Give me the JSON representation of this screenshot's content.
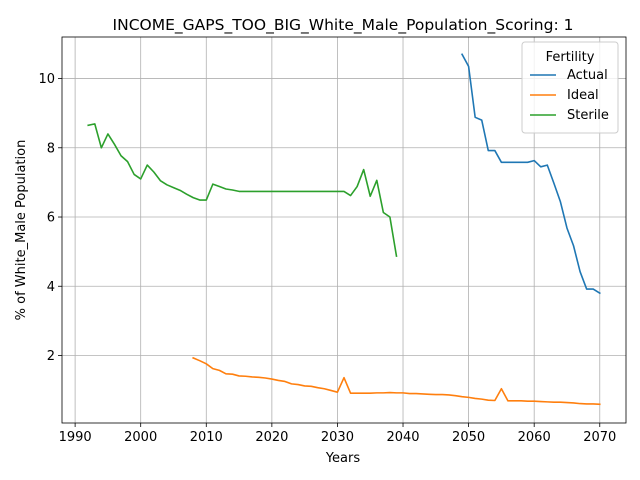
{
  "chart_data": {
    "type": "line",
    "title": "INCOME_GAPS_TOO_BIG_White_Male_Population_Scoring: 1",
    "xlabel": "Years",
    "ylabel": "% of White_Male Population",
    "xlim": [
      1988,
      2074
    ],
    "ylim": [
      0.05,
      11.2
    ],
    "x_ticks": [
      1990,
      2000,
      2010,
      2020,
      2030,
      2040,
      2050,
      2060,
      2070
    ],
    "y_ticks": [
      2,
      4,
      6,
      8,
      10
    ],
    "grid": true,
    "legend": {
      "title": "Fertility",
      "position": "top-right"
    },
    "series": [
      {
        "name": "Actual",
        "color": "#1f77b4",
        "points": [
          [
            2049,
            10.7
          ],
          [
            2050,
            10.35
          ],
          [
            2051,
            8.88
          ],
          [
            2052,
            8.8
          ],
          [
            2053,
            7.92
          ],
          [
            2054,
            7.92
          ],
          [
            2055,
            7.58
          ],
          [
            2056,
            7.58
          ],
          [
            2057,
            7.58
          ],
          [
            2058,
            7.58
          ],
          [
            2059,
            7.58
          ],
          [
            2060,
            7.63
          ],
          [
            2061,
            7.45
          ],
          [
            2062,
            7.5
          ],
          [
            2063,
            6.98
          ],
          [
            2064,
            6.44
          ],
          [
            2065,
            5.68
          ],
          [
            2066,
            5.17
          ],
          [
            2067,
            4.42
          ],
          [
            2068,
            3.92
          ],
          [
            2069,
            3.92
          ],
          [
            2070,
            3.8
          ]
        ]
      },
      {
        "name": "Ideal",
        "color": "#ff7f0e",
        "points": [
          [
            2008,
            1.93
          ],
          [
            2009,
            1.85
          ],
          [
            2010,
            1.76
          ],
          [
            2011,
            1.62
          ],
          [
            2012,
            1.57
          ],
          [
            2013,
            1.47
          ],
          [
            2014,
            1.46
          ],
          [
            2015,
            1.41
          ],
          [
            2016,
            1.4
          ],
          [
            2017,
            1.38
          ],
          [
            2018,
            1.37
          ],
          [
            2019,
            1.35
          ],
          [
            2020,
            1.32
          ],
          [
            2021,
            1.28
          ],
          [
            2022,
            1.25
          ],
          [
            2023,
            1.18
          ],
          [
            2024,
            1.16
          ],
          [
            2025,
            1.12
          ],
          [
            2026,
            1.11
          ],
          [
            2027,
            1.07
          ],
          [
            2028,
            1.04
          ],
          [
            2029,
            0.99
          ],
          [
            2030,
            0.94
          ],
          [
            2031,
            1.36
          ],
          [
            2032,
            0.91
          ],
          [
            2033,
            0.91
          ],
          [
            2034,
            0.91
          ],
          [
            2035,
            0.91
          ],
          [
            2036,
            0.92
          ],
          [
            2037,
            0.92
          ],
          [
            2038,
            0.93
          ],
          [
            2039,
            0.92
          ],
          [
            2040,
            0.92
          ],
          [
            2041,
            0.9
          ],
          [
            2042,
            0.9
          ],
          [
            2043,
            0.89
          ],
          [
            2044,
            0.88
          ],
          [
            2045,
            0.87
          ],
          [
            2046,
            0.87
          ],
          [
            2047,
            0.86
          ],
          [
            2048,
            0.84
          ],
          [
            2049,
            0.81
          ],
          [
            2050,
            0.79
          ],
          [
            2051,
            0.76
          ],
          [
            2052,
            0.74
          ],
          [
            2053,
            0.71
          ],
          [
            2054,
            0.7
          ],
          [
            2055,
            1.04
          ],
          [
            2056,
            0.69
          ],
          [
            2057,
            0.69
          ],
          [
            2058,
            0.69
          ],
          [
            2059,
            0.68
          ],
          [
            2060,
            0.68
          ],
          [
            2061,
            0.67
          ],
          [
            2062,
            0.66
          ],
          [
            2063,
            0.65
          ],
          [
            2064,
            0.65
          ],
          [
            2065,
            0.64
          ],
          [
            2066,
            0.63
          ],
          [
            2067,
            0.61
          ],
          [
            2068,
            0.6
          ],
          [
            2069,
            0.6
          ],
          [
            2070,
            0.59
          ]
        ]
      },
      {
        "name": "Sterile",
        "color": "#2ca02c",
        "points": [
          [
            1992,
            8.65
          ],
          [
            1993,
            8.69
          ],
          [
            1994,
            8.0
          ],
          [
            1995,
            8.4
          ],
          [
            1996,
            8.1
          ],
          [
            1997,
            7.77
          ],
          [
            1998,
            7.6
          ],
          [
            1999,
            7.23
          ],
          [
            2000,
            7.1
          ],
          [
            2001,
            7.5
          ],
          [
            2002,
            7.3
          ],
          [
            2003,
            7.05
          ],
          [
            2004,
            6.93
          ],
          [
            2005,
            6.85
          ],
          [
            2006,
            6.77
          ],
          [
            2007,
            6.66
          ],
          [
            2008,
            6.56
          ],
          [
            2009,
            6.49
          ],
          [
            2010,
            6.49
          ],
          [
            2011,
            6.95
          ],
          [
            2012,
            6.88
          ],
          [
            2013,
            6.81
          ],
          [
            2014,
            6.78
          ],
          [
            2015,
            6.74
          ],
          [
            2016,
            6.74
          ],
          [
            2017,
            6.74
          ],
          [
            2018,
            6.74
          ],
          [
            2019,
            6.74
          ],
          [
            2020,
            6.74
          ],
          [
            2021,
            6.74
          ],
          [
            2022,
            6.74
          ],
          [
            2023,
            6.74
          ],
          [
            2024,
            6.74
          ],
          [
            2025,
            6.74
          ],
          [
            2026,
            6.74
          ],
          [
            2027,
            6.74
          ],
          [
            2028,
            6.74
          ],
          [
            2029,
            6.74
          ],
          [
            2030,
            6.74
          ],
          [
            2031,
            6.74
          ],
          [
            2032,
            6.62
          ],
          [
            2033,
            6.88
          ],
          [
            2034,
            7.37
          ],
          [
            2035,
            6.6
          ],
          [
            2036,
            7.06
          ],
          [
            2037,
            6.13
          ],
          [
            2038,
            6.0
          ],
          [
            2039,
            4.87
          ]
        ]
      }
    ]
  }
}
